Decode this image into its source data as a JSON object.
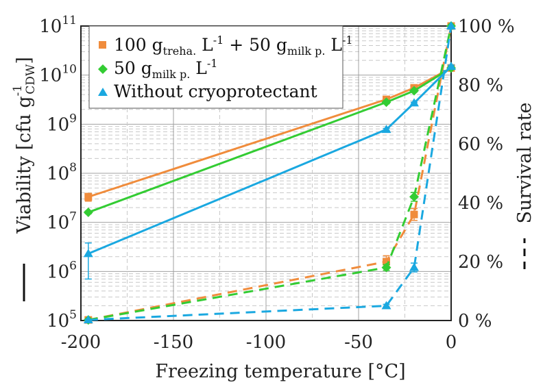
{
  "chart_data": {
    "type": "line",
    "xlabel": "Freezing temperature [°C]",
    "ylabel": "Viability [cfu g",
    "ylabel_sup": "-1",
    "ylabel_sub": "CDW",
    "ylabel_close": "]",
    "y2label": "Survival rate",
    "xlim": [
      -200,
      0
    ],
    "ylim": [
      100000,
      100000000000
    ],
    "yscale": "log",
    "y2lim": [
      0,
      100
    ],
    "grid": true,
    "legend_position": "top-left",
    "x_ticks": [
      "-200",
      "-150",
      "-100",
      "-50",
      "0"
    ],
    "x_tick_values": [
      -200,
      -150,
      -100,
      -50,
      0
    ],
    "y_ticks": [
      {
        "base": "10",
        "exp": "5",
        "value": 100000
      },
      {
        "base": "10",
        "exp": "6",
        "value": 1000000
      },
      {
        "base": "10",
        "exp": "7",
        "value": 10000000
      },
      {
        "base": "10",
        "exp": "8",
        "value": 100000000
      },
      {
        "base": "10",
        "exp": "9",
        "value": 1000000000
      },
      {
        "base": "10",
        "exp": "10",
        "value": 10000000000
      },
      {
        "base": "10",
        "exp": "11",
        "value": 100000000000
      }
    ],
    "y2_ticks": [
      {
        "label": "0 %",
        "value": 0
      },
      {
        "label": "20 %",
        "value": 20
      },
      {
        "label": "40 %",
        "value": 40
      },
      {
        "label": "60 %",
        "value": 60
      },
      {
        "label": "80 %",
        "value": 80
      },
      {
        "label": "100 %",
        "value": 100
      }
    ],
    "series": [
      {
        "legend": {
          "pre": "100 g",
          "sub1": "treha.",
          "mid": " L",
          "sup1": "-1",
          "mid2": " + 50 g",
          "sub2": "milk p.",
          "mid3": " L",
          "sup2": "-1"
        },
        "color": "#f08c3c",
        "marker": "square",
        "viability": {
          "x": [
            -196,
            -35,
            -20,
            0
          ],
          "y": [
            33000000,
            3200000000,
            5500000000,
            14000000000
          ],
          "err_low": [
            27000000,
            2800000000,
            5000000000,
            12000000000
          ],
          "err_high": [
            39000000,
            3600000000,
            6100000000,
            16000000000
          ]
        },
        "survival": {
          "x": [
            -196,
            -35,
            -20,
            0
          ],
          "y": [
            0.2,
            20,
            36,
            100
          ],
          "err": [
            0.2,
            2,
            2,
            0
          ]
        }
      },
      {
        "legend": {
          "pre": "50 g",
          "sub1": "milk p.",
          "mid": " L",
          "sup1": "-1"
        },
        "color": "#33cc33",
        "marker": "diamond",
        "viability": {
          "x": [
            -196,
            -35,
            -20,
            0
          ],
          "y": [
            16000000,
            2800000000,
            4800000000,
            14000000000
          ],
          "err_low": [
            15000000,
            2600000000,
            4500000000,
            13000000000
          ],
          "err_high": [
            17000000,
            3000000000,
            5100000000,
            15000000000
          ]
        },
        "survival": {
          "x": [
            -196,
            -35,
            -20,
            0
          ],
          "y": [
            0.2,
            18,
            42,
            100
          ],
          "err": [
            0.2,
            1,
            1.5,
            0
          ]
        }
      },
      {
        "legend": {
          "pre": "Without cryoprotectant"
        },
        "color": "#1aa8e0",
        "marker": "triangle",
        "viability": {
          "x": [
            -196,
            -35,
            -20,
            0
          ],
          "y": [
            2300000,
            780000000,
            2700000000,
            15000000000
          ],
          "err_low": [
            700000,
            740000000,
            2600000000,
            14000000000
          ],
          "err_high": [
            3800000,
            820000000,
            2800000000,
            16000000000
          ]
        },
        "survival": {
          "x": [
            -196,
            -35,
            -20,
            0
          ],
          "y": [
            0.2,
            5,
            18,
            100
          ],
          "err": [
            0.2,
            0.5,
            1.5,
            0
          ]
        }
      }
    ]
  }
}
